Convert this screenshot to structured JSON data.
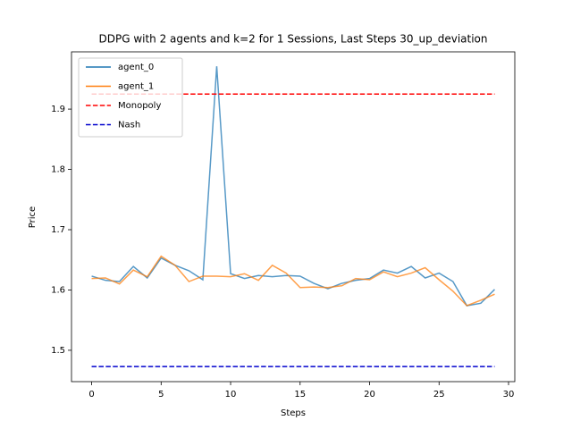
{
  "chart_data": {
    "type": "line",
    "title": "DDPG with 2 agents and k=2 for 1 Sessions, Last Steps 30_up_deviation",
    "xlabel": "Steps",
    "ylabel": "Price",
    "x": [
      0,
      1,
      2,
      3,
      4,
      5,
      6,
      7,
      8,
      9,
      10,
      11,
      12,
      13,
      14,
      15,
      16,
      17,
      18,
      19,
      20,
      21,
      22,
      23,
      24,
      25,
      26,
      27,
      28,
      29
    ],
    "series": [
      {
        "name": "agent_0",
        "color": "#1f77b4",
        "linestyle": "solid",
        "values": [
          1.623,
          1.616,
          1.614,
          1.639,
          1.62,
          1.653,
          1.641,
          1.632,
          1.617,
          1.971,
          1.627,
          1.619,
          1.624,
          1.622,
          1.624,
          1.623,
          1.611,
          1.602,
          1.611,
          1.616,
          1.619,
          1.633,
          1.628,
          1.639,
          1.62,
          1.628,
          1.614,
          1.574,
          1.578,
          1.601
        ]
      },
      {
        "name": "agent_1",
        "color": "#ff7f0e",
        "linestyle": "solid",
        "values": [
          1.619,
          1.62,
          1.61,
          1.633,
          1.622,
          1.656,
          1.641,
          1.614,
          1.623,
          1.623,
          1.622,
          1.627,
          1.616,
          1.641,
          1.628,
          1.604,
          1.605,
          1.604,
          1.607,
          1.619,
          1.617,
          1.63,
          1.622,
          1.628,
          1.637,
          1.617,
          1.598,
          1.574,
          1.583,
          1.593
        ]
      },
      {
        "name": "Monopoly",
        "color": "#ff0000",
        "linestyle": "dashed",
        "values": [
          1.925,
          1.925,
          1.925,
          1.925,
          1.925,
          1.925,
          1.925,
          1.925,
          1.925,
          1.925,
          1.925,
          1.925,
          1.925,
          1.925,
          1.925,
          1.925,
          1.925,
          1.925,
          1.925,
          1.925,
          1.925,
          1.925,
          1.925,
          1.925,
          1.925,
          1.925,
          1.925,
          1.925,
          1.925,
          1.925
        ]
      },
      {
        "name": "Nash",
        "color": "#0000cd",
        "linestyle": "dashed",
        "values": [
          1.473,
          1.473,
          1.473,
          1.473,
          1.473,
          1.473,
          1.473,
          1.473,
          1.473,
          1.473,
          1.473,
          1.473,
          1.473,
          1.473,
          1.473,
          1.473,
          1.473,
          1.473,
          1.473,
          1.473,
          1.473,
          1.473,
          1.473,
          1.473,
          1.473,
          1.473,
          1.473,
          1.473,
          1.473,
          1.473
        ]
      }
    ],
    "xlim": [
      -1.45,
      30.45
    ],
    "xticks": [
      0,
      5,
      10,
      15,
      20,
      25,
      30
    ],
    "ylim": [
      1.448,
      1.995
    ],
    "yticks": [
      1.5,
      1.6,
      1.7,
      1.8,
      1.9
    ],
    "legend": "upper left",
    "grid": false
  }
}
